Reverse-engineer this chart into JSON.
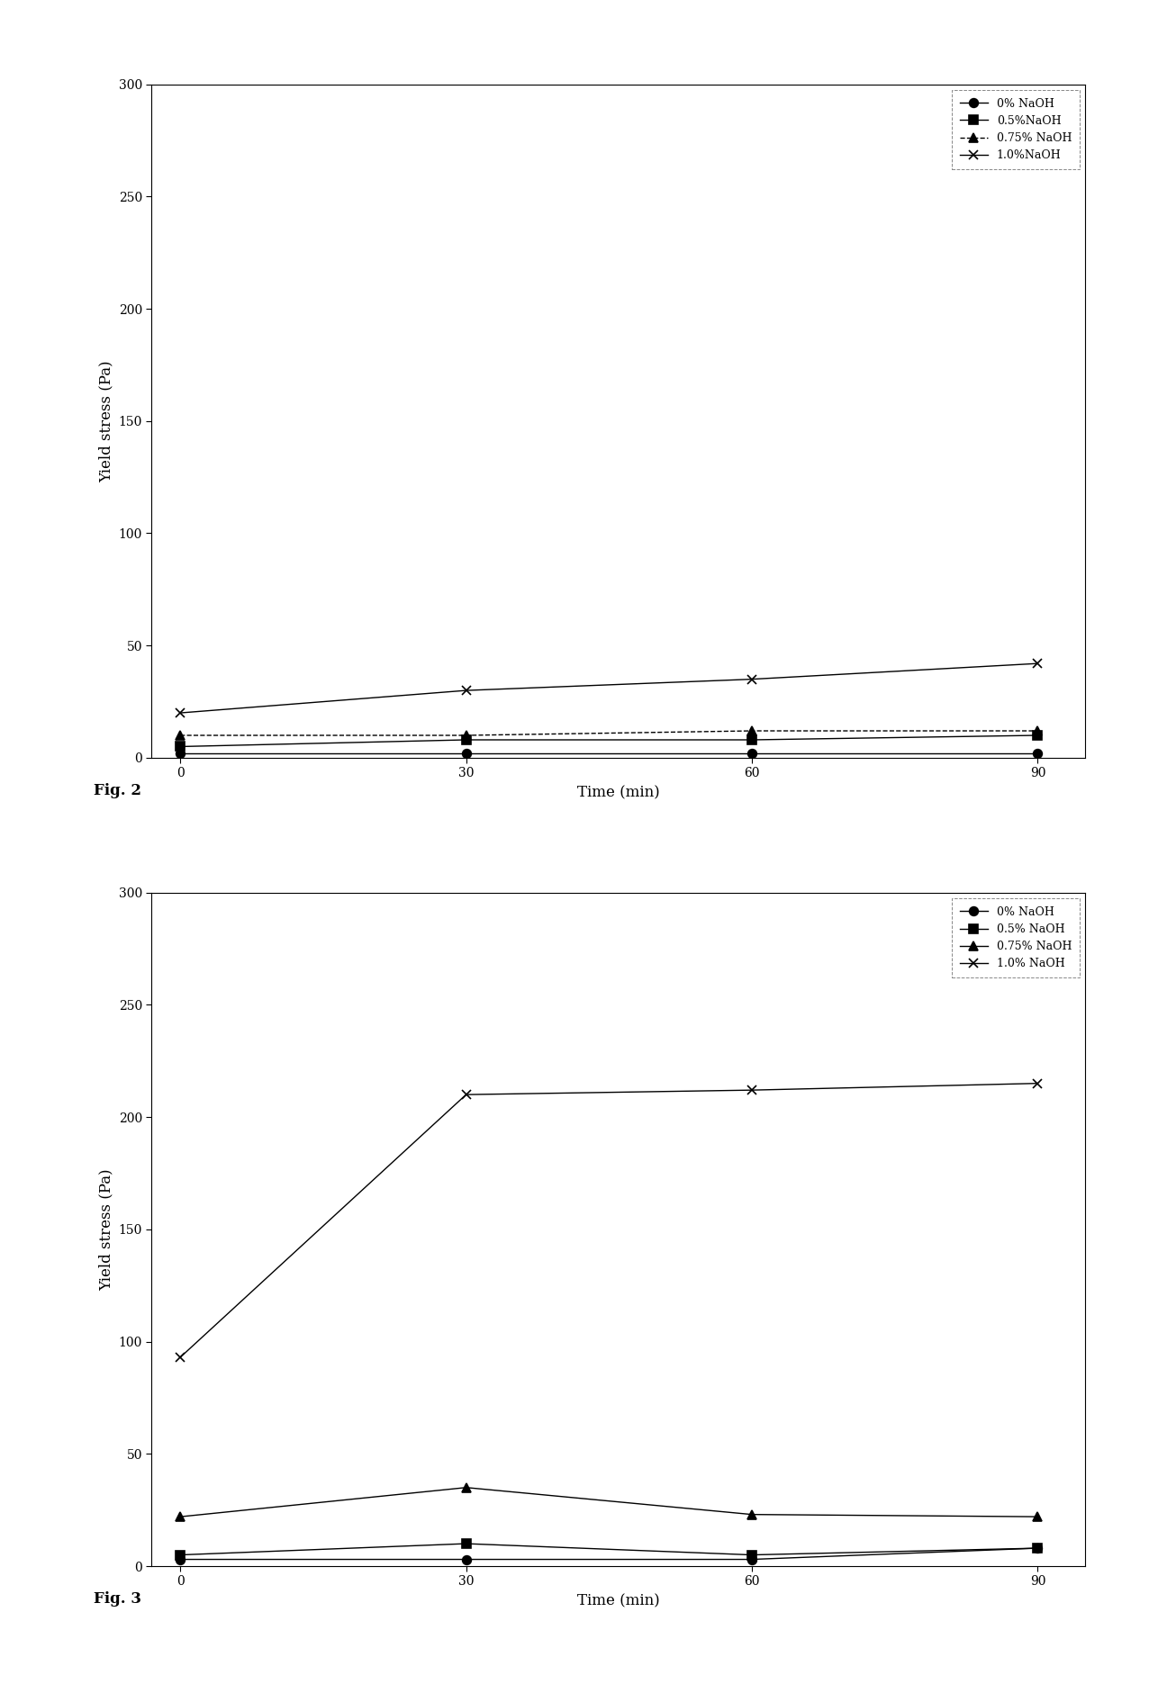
{
  "time": [
    0,
    30,
    60,
    90
  ],
  "fig2": {
    "series": [
      {
        "label": "0% NaOH",
        "values": [
          2,
          2,
          2,
          2
        ],
        "marker": "o",
        "linestyle": "-"
      },
      {
        "label": "0.5%NaOH",
        "values": [
          5,
          8,
          8,
          10
        ],
        "marker": "s",
        "linestyle": "-"
      },
      {
        "label": "0.75% NaOH",
        "values": [
          10,
          10,
          12,
          12
        ],
        "marker": "^",
        "linestyle": "--"
      },
      {
        "label": "1.0%NaOH",
        "values": [
          20,
          30,
          35,
          42
        ],
        "marker": "x",
        "linestyle": "-"
      }
    ],
    "ylabel": "Yield stress (Pa)",
    "xlabel": "Time (min)",
    "ylim": [
      0,
      300
    ],
    "yticks": [
      0,
      50,
      100,
      150,
      200,
      250,
      300
    ],
    "xticks": [
      0,
      30,
      60,
      90
    ],
    "fig_label": "Fig. 2"
  },
  "fig3": {
    "series": [
      {
        "label": "0% NaOH",
        "values": [
          3,
          3,
          3,
          8
        ],
        "marker": "o",
        "linestyle": "-"
      },
      {
        "label": "0.5% NaOH",
        "values": [
          5,
          10,
          5,
          8
        ],
        "marker": "s",
        "linestyle": "-"
      },
      {
        "label": "0.75% NaOH",
        "values": [
          22,
          35,
          23,
          22
        ],
        "marker": "^",
        "linestyle": "-"
      },
      {
        "label": "1.0% NaOH",
        "values": [
          93,
          210,
          212,
          215
        ],
        "marker": "x",
        "linestyle": "-"
      }
    ],
    "ylabel": "Yield stress (Pa)",
    "xlabel": "Time (min)",
    "ylim": [
      0,
      300
    ],
    "yticks": [
      0,
      50,
      100,
      150,
      200,
      250,
      300
    ],
    "xticks": [
      0,
      30,
      60,
      90
    ],
    "fig_label": "Fig. 3"
  },
  "line_color": "#000000",
  "marker_size": 7,
  "legend_fontsize": 9,
  "axis_fontsize": 12,
  "tick_fontsize": 10,
  "fig_label_fontsize": 12
}
